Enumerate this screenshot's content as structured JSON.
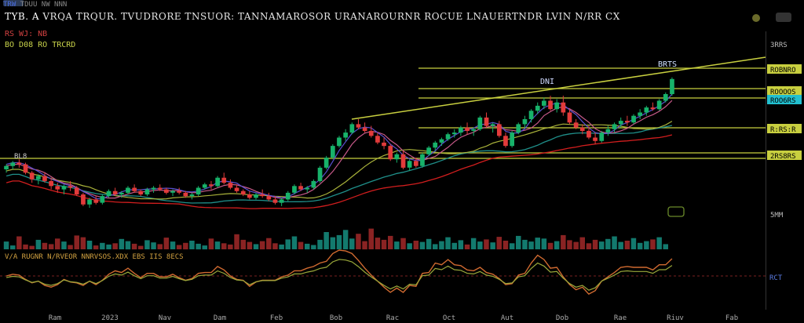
{
  "header": {
    "brand": "TRW",
    "title_prefix": "TYB. A",
    "title_rest": "VRQA TRQUR. TVUDRORE TNSUOR: TANNAMAROSOR URANAROURNR ROCUE LNAUERTNDR LVIN N/RR CX",
    "row1": "TDUU NW NNN",
    "row2": "RS WJ: NB",
    "row3": "BO D08 RO  TRCRD"
  },
  "colors": {
    "background": "#000000",
    "up": "#17b26a",
    "down": "#e23b3b",
    "trendline": "#c8cf3f",
    "ma_fast": "#5a4fd0",
    "ma_slow": "#c85a8a",
    "ma_teal": "#1f8f8a",
    "ma_red": "#d21e1e",
    "ma_olive": "#a9b23a",
    "cyan": "#22c0d0"
  },
  "labels": {
    "peak_left": "BL8",
    "peak_mid": "DNI",
    "peak_right": "BRTS",
    "osc_title": "V/A  RUGNR  N/RVEOR  NNRVSOS.XDX  EBS  IIS  8ECS",
    "rsi_label": "RCT"
  },
  "chart_data": {
    "type": "candlestick",
    "x_tick_labels": [
      "Ram",
      "2023",
      "Nav",
      "Dam",
      "Feb",
      "Bob",
      "Rac",
      "Oct",
      "Aut",
      "Dob",
      "Rae",
      "Riuv",
      "Fab"
    ],
    "price_labels": [
      "3RRS",
      "ROBNRO",
      "ROOOOS",
      "ROO6RS",
      "R:RS:R",
      "2RS8RS",
      "5MM"
    ],
    "candles": [
      [
        30,
        33,
        28,
        32
      ],
      [
        32,
        35,
        30,
        34
      ],
      [
        34,
        36,
        31,
        33
      ],
      [
        33,
        34,
        27,
        28
      ],
      [
        28,
        29,
        22,
        24
      ],
      [
        24,
        27,
        21,
        26
      ],
      [
        26,
        28,
        22,
        23
      ],
      [
        23,
        25,
        18,
        20
      ],
      [
        20,
        22,
        16,
        18
      ],
      [
        18,
        21,
        15,
        20
      ],
      [
        20,
        23,
        17,
        19
      ],
      [
        19,
        20,
        14,
        15
      ],
      [
        15,
        16,
        8,
        9
      ],
      [
        9,
        13,
        7,
        12
      ],
      [
        12,
        14,
        9,
        10
      ],
      [
        10,
        15,
        9,
        14
      ],
      [
        14,
        18,
        13,
        17
      ],
      [
        17,
        19,
        14,
        15
      ],
      [
        15,
        17,
        13,
        16
      ],
      [
        16,
        20,
        15,
        19
      ],
      [
        19,
        21,
        16,
        17
      ],
      [
        17,
        18,
        14,
        15
      ],
      [
        15,
        19,
        14,
        18
      ],
      [
        18,
        20,
        16,
        19
      ],
      [
        19,
        21,
        17,
        18
      ],
      [
        18,
        19,
        15,
        16
      ],
      [
        16,
        18,
        14,
        17
      ],
      [
        17,
        19,
        15,
        16
      ],
      [
        16,
        17,
        13,
        14
      ],
      [
        14,
        16,
        12,
        15
      ],
      [
        15,
        20,
        14,
        19
      ],
      [
        19,
        22,
        18,
        21
      ],
      [
        21,
        23,
        18,
        20
      ],
      [
        20,
        26,
        19,
        25
      ],
      [
        25,
        28,
        21,
        22
      ],
      [
        22,
        24,
        18,
        19
      ],
      [
        19,
        21,
        16,
        17
      ],
      [
        17,
        18,
        14,
        15
      ],
      [
        15,
        17,
        12,
        13
      ],
      [
        13,
        16,
        12,
        15
      ],
      [
        15,
        18,
        13,
        14
      ],
      [
        14,
        16,
        11,
        12
      ],
      [
        12,
        14,
        9,
        10
      ],
      [
        10,
        13,
        8,
        12
      ],
      [
        12,
        17,
        11,
        16
      ],
      [
        16,
        21,
        15,
        20
      ],
      [
        20,
        22,
        17,
        18
      ],
      [
        18,
        20,
        16,
        19
      ],
      [
        19,
        24,
        18,
        23
      ],
      [
        23,
        32,
        22,
        31
      ],
      [
        31,
        38,
        30,
        37
      ],
      [
        37,
        45,
        36,
        44
      ],
      [
        44,
        50,
        43,
        49
      ],
      [
        49,
        54,
        47,
        52
      ],
      [
        52,
        58,
        51,
        57
      ],
      [
        57,
        60,
        54,
        55
      ],
      [
        55,
        58,
        52,
        53
      ],
      [
        53,
        56,
        49,
        50
      ],
      [
        50,
        52,
        45,
        46
      ],
      [
        46,
        49,
        42,
        44
      ],
      [
        44,
        45,
        35,
        36
      ],
      [
        36,
        40,
        34,
        39
      ],
      [
        39,
        41,
        30,
        31
      ],
      [
        31,
        36,
        29,
        35
      ],
      [
        35,
        37,
        31,
        32
      ],
      [
        32,
        40,
        31,
        39
      ],
      [
        39,
        44,
        38,
        43
      ],
      [
        43,
        47,
        41,
        46
      ],
      [
        46,
        49,
        44,
        48
      ],
      [
        48,
        52,
        47,
        51
      ],
      [
        51,
        54,
        49,
        52
      ],
      [
        52,
        56,
        50,
        55
      ],
      [
        55,
        58,
        51,
        53
      ],
      [
        53,
        55,
        50,
        54
      ],
      [
        54,
        62,
        53,
        61
      ],
      [
        61,
        64,
        55,
        56
      ],
      [
        56,
        58,
        52,
        57
      ],
      [
        57,
        59,
        49,
        50
      ],
      [
        50,
        52,
        43,
        44
      ],
      [
        44,
        53,
        43,
        52
      ],
      [
        52,
        58,
        51,
        57
      ],
      [
        57,
        62,
        55,
        60
      ],
      [
        60,
        66,
        58,
        65
      ],
      [
        65,
        70,
        63,
        68
      ],
      [
        68,
        73,
        66,
        71
      ],
      [
        71,
        74,
        65,
        66
      ],
      [
        66,
        72,
        64,
        70
      ],
      [
        70,
        74,
        62,
        64
      ],
      [
        64,
        66,
        57,
        58
      ],
      [
        58,
        60,
        54,
        55
      ],
      [
        55,
        57,
        51,
        53
      ],
      [
        53,
        56,
        48,
        49
      ],
      [
        49,
        52,
        45,
        47
      ],
      [
        47,
        53,
        46,
        52
      ],
      [
        52,
        56,
        50,
        54
      ],
      [
        54,
        58,
        52,
        57
      ],
      [
        57,
        61,
        55,
        59
      ],
      [
        59,
        62,
        56,
        58
      ],
      [
        58,
        63,
        57,
        62
      ],
      [
        62,
        66,
        60,
        64
      ],
      [
        64,
        68,
        62,
        67
      ],
      [
        67,
        70,
        65,
        66
      ],
      [
        66,
        72,
        65,
        71
      ],
      [
        71,
        76,
        70,
        75
      ],
      [
        75,
        85,
        74,
        84
      ]
    ],
    "volume": [
      18,
      9,
      30,
      11,
      8,
      22,
      15,
      12,
      25,
      18,
      10,
      32,
      28,
      20,
      9,
      15,
      11,
      14,
      24,
      19,
      13,
      8,
      21,
      16,
      12,
      27,
      18,
      10,
      15,
      20,
      13,
      9,
      25,
      18,
      14,
      11,
      35,
      22,
      17,
      12,
      19,
      26,
      14,
      11,
      23,
      30,
      17,
      13,
      10,
      22,
      40,
      28,
      33,
      45,
      25,
      36,
      19,
      48,
      27,
      22,
      31,
      18,
      26,
      14,
      20,
      17,
      24,
      12,
      19,
      28,
      15,
      21,
      11,
      26,
      18,
      23,
      16,
      29,
      20,
      14,
      31,
      22,
      18,
      27,
      25,
      15,
      19,
      33,
      21,
      17,
      28,
      14,
      22,
      18,
      24,
      30,
      17,
      20,
      26,
      15,
      19,
      23,
      28,
      12
    ]
  }
}
